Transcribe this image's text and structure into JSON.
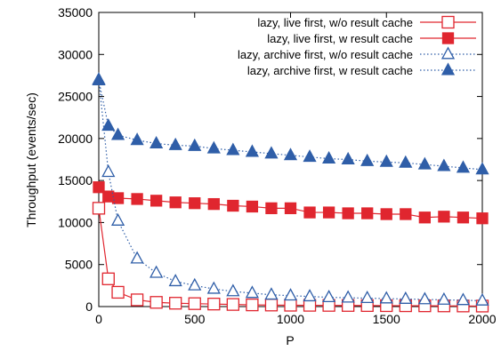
{
  "chart_data": {
    "type": "line",
    "title": "",
    "xlabel": "P",
    "ylabel": "Throughput (events/sec)",
    "xlim": [
      0,
      2000
    ],
    "ylim": [
      0,
      35000
    ],
    "xticks": [
      0,
      500,
      1000,
      1500,
      2000
    ],
    "yticks": [
      0,
      5000,
      10000,
      15000,
      20000,
      25000,
      30000,
      35000
    ],
    "grid": false,
    "legend_position": "top-right",
    "series": [
      {
        "name": "lazy, live first, w/o result cache",
        "color": "#e0262f",
        "line_style": "solid",
        "marker": "open-square",
        "x": [
          0,
          50,
          100,
          200,
          300,
          400,
          500,
          600,
          700,
          800,
          900,
          1000,
          1100,
          1200,
          1300,
          1400,
          1500,
          1600,
          1700,
          1800,
          1900,
          2000
        ],
        "y": [
          11700,
          3300,
          1700,
          800,
          500,
          400,
          350,
          300,
          250,
          200,
          180,
          160,
          150,
          140,
          130,
          120,
          110,
          100,
          90,
          80,
          70,
          60
        ]
      },
      {
        "name": "lazy, live first, w result cache",
        "color": "#e0262f",
        "line_style": "solid",
        "marker": "filled-square",
        "x": [
          0,
          50,
          100,
          200,
          300,
          400,
          500,
          600,
          700,
          800,
          900,
          1000,
          1100,
          1200,
          1300,
          1400,
          1500,
          1600,
          1700,
          1800,
          1900,
          2000
        ],
        "y": [
          14200,
          13100,
          12900,
          12800,
          12600,
          12400,
          12300,
          12200,
          12000,
          11900,
          11700,
          11700,
          11200,
          11200,
          11100,
          11100,
          11000,
          11000,
          10600,
          10700,
          10600,
          10500
        ]
      },
      {
        "name": "lazy, archive first, w/o result cache",
        "color": "#2f5ea8",
        "line_style": "dotted",
        "marker": "open-triangle",
        "x": [
          0,
          50,
          100,
          200,
          300,
          400,
          500,
          600,
          700,
          800,
          900,
          1000,
          1100,
          1200,
          1300,
          1400,
          1500,
          1600,
          1700,
          1800,
          1900,
          2000
        ],
        "y": [
          27000,
          16000,
          10200,
          5700,
          4000,
          3000,
          2500,
          2100,
          1800,
          1600,
          1400,
          1300,
          1200,
          1100,
          1050,
          1000,
          950,
          900,
          850,
          800,
          750,
          700
        ]
      },
      {
        "name": "lazy, archive first, w result cache",
        "color": "#2f5ea8",
        "line_style": "dotted",
        "marker": "filled-triangle",
        "x": [
          0,
          50,
          100,
          200,
          300,
          400,
          500,
          600,
          700,
          800,
          900,
          1000,
          1100,
          1200,
          1300,
          1400,
          1500,
          1600,
          1700,
          1800,
          1900,
          2000
        ],
        "y": [
          26900,
          21500,
          20400,
          19800,
          19400,
          19200,
          19100,
          18800,
          18600,
          18400,
          18200,
          18000,
          17800,
          17600,
          17500,
          17300,
          17200,
          17100,
          16900,
          16700,
          16500,
          16300
        ]
      }
    ]
  }
}
